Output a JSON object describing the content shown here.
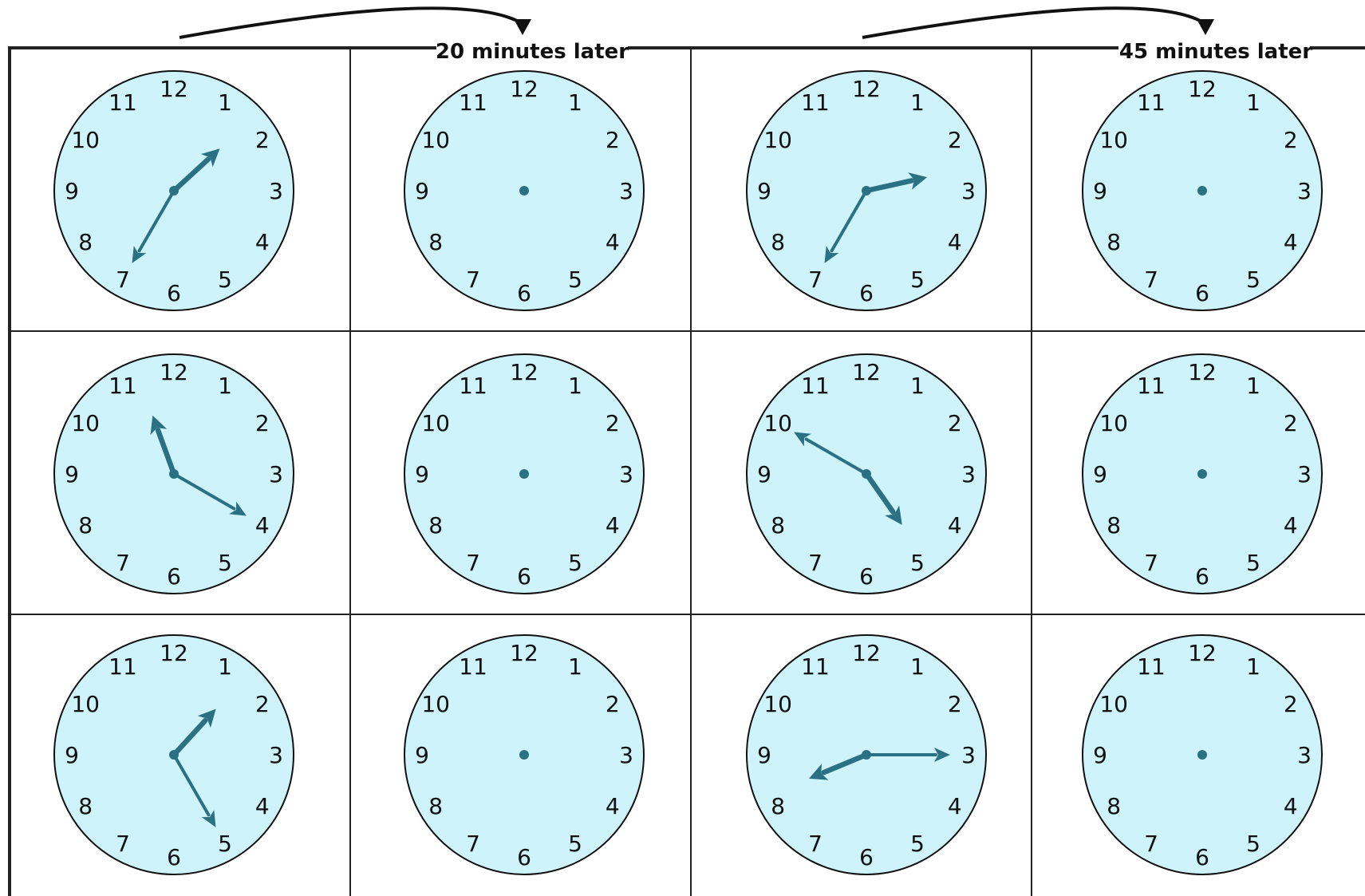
{
  "headers": [
    {
      "label": "20 minutes later"
    },
    {
      "label": "45 minutes later"
    }
  ],
  "colors": {
    "clock_face": "#cff3fb",
    "clock_outline": "#111111",
    "hand": "#2a7184",
    "grid_line": "#222222"
  },
  "clock_numbers": [
    "12",
    "1",
    "2",
    "3",
    "4",
    "5",
    "6",
    "7",
    "8",
    "9",
    "10",
    "11"
  ],
  "icons": {
    "arrow": "curved-arrow-icon",
    "hand": "clock-hand-arrow-icon"
  },
  "clocks": [
    [
      {
        "type": "given",
        "time": "1:35"
      },
      {
        "type": "blank"
      },
      {
        "type": "given",
        "time": "2:35"
      },
      {
        "type": "blank"
      }
    ],
    [
      {
        "type": "given",
        "time": "11:20"
      },
      {
        "type": "blank"
      },
      {
        "type": "given",
        "time": "4:50"
      },
      {
        "type": "blank"
      }
    ],
    [
      {
        "type": "given",
        "time": "1:25"
      },
      {
        "type": "blank"
      },
      {
        "type": "given",
        "time": "8:15"
      },
      {
        "type": "blank"
      }
    ]
  ]
}
